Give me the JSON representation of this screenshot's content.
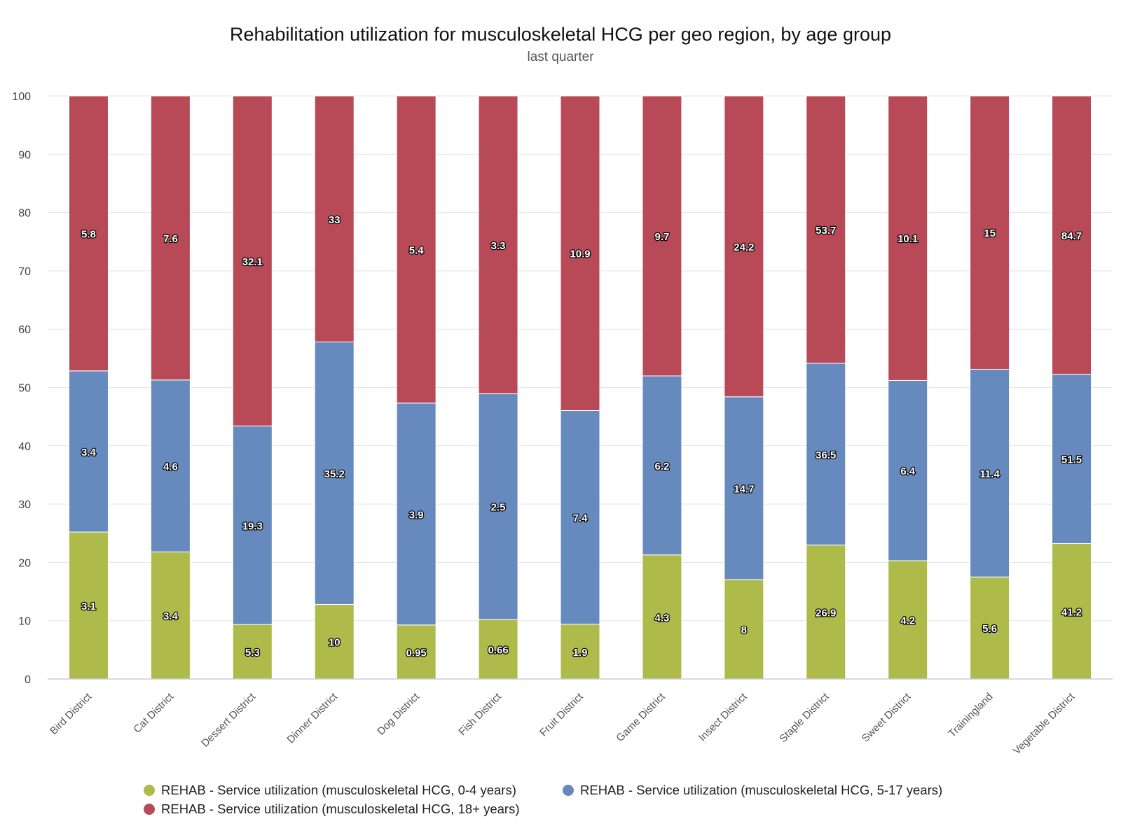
{
  "chart_data": {
    "type": "bar",
    "stacking": "percent",
    "title": "Rehabilitation utilization for musculoskeletal HCG per geo region, by age group",
    "subtitle": "last quarter",
    "xlabel": "",
    "ylabel": "",
    "ylim": [
      0,
      100
    ],
    "yticks": [
      "0",
      "10",
      "20",
      "30",
      "40",
      "50",
      "60",
      "70",
      "80",
      "90",
      "100"
    ],
    "grid": true,
    "legend_position": "bottom",
    "categories": [
      "Bird District",
      "Cat District",
      "Dessert District",
      "Dinner District",
      "Dog District",
      "Fish District",
      "Fruit District",
      "Game District",
      "Insect District",
      "Staple District",
      "Sweet District",
      "Trainingland",
      "Vegetable District"
    ],
    "series": [
      {
        "name": "REHAB - Service utilization (musculoskeletal HCG, 0-4 years)",
        "color": "#aebb4a",
        "values": [
          3.1,
          3.4,
          5.3,
          10,
          0.95,
          0.66,
          1.9,
          4.3,
          8,
          26.9,
          4.2,
          5.6,
          41.2
        ],
        "labels": [
          "3.1",
          "3.4",
          "5.3",
          "10",
          "0.95",
          "0.66",
          "1.9",
          "4.3",
          "8",
          "26.9",
          "4.2",
          "5.6",
          "41.2"
        ]
      },
      {
        "name": "REHAB - Service utilization (musculoskeletal HCG, 5-17 years)",
        "color": "#678abe",
        "values": [
          3.4,
          4.6,
          19.3,
          35.2,
          3.9,
          2.5,
          7.4,
          6.2,
          14.7,
          36.5,
          6.4,
          11.4,
          51.5
        ],
        "labels": [
          "3.4",
          "4.6",
          "19.3",
          "35.2",
          "3.9",
          "2.5",
          "7.4",
          "6.2",
          "14.7",
          "36.5",
          "6.4",
          "11.4",
          "51.5"
        ]
      },
      {
        "name": "REHAB - Service utilization (musculoskeletal HCG, 18+ years)",
        "color": "#b84a58",
        "values": [
          5.8,
          7.6,
          32.1,
          33,
          5.4,
          3.3,
          10.9,
          9.7,
          24.2,
          53.7,
          10.1,
          15,
          84.7
        ],
        "labels": [
          "5.8",
          "7.6",
          "32.1",
          "33",
          "5.4",
          "3.3",
          "10.9",
          "9.7",
          "24.2",
          "53.7",
          "10.1",
          "15",
          "84.7"
        ]
      }
    ]
  }
}
